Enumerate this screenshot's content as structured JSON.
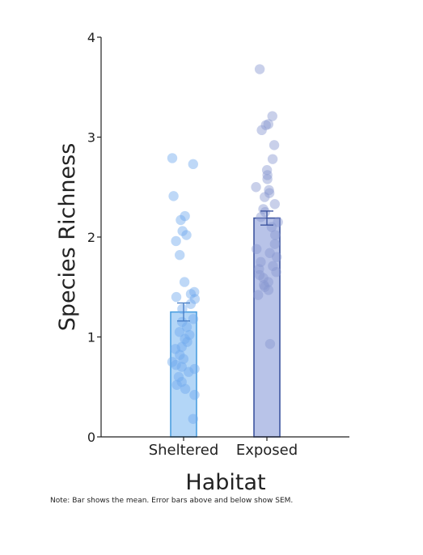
{
  "chart_data": {
    "type": "bar",
    "title": "",
    "xlabel": "Habitat",
    "ylabel": "Species Richness",
    "ylim": [
      0,
      4
    ],
    "yticks": [
      "0",
      "1",
      "2",
      "3",
      "4"
    ],
    "categories": [
      "Sheltered",
      "Exposed"
    ],
    "series": [
      {
        "values": [
          1.25,
          2.19
        ],
        "sem": [
          0.09,
          0.07
        ],
        "colors": {
          "bar_fill": "#b3d6f7",
          "bar_edge": "#4a9ee0",
          "point": "#6fa9ee",
          "error": "#4a80c8"
        }
      }
    ],
    "exposed_colors": {
      "bar_fill": "#b8c3e8",
      "bar_edge": "#3e55a0",
      "point": "#8797d0",
      "error": "#3e55a0"
    },
    "points": {
      "Sheltered": [
        2.79,
        2.73,
        2.41,
        2.21,
        2.17,
        2.06,
        2.02,
        1.96,
        1.82,
        1.55,
        1.45,
        1.43,
        1.4,
        1.38,
        1.33,
        1.28,
        1.18,
        1.15,
        1.1,
        1.05,
        1.02,
        0.98,
        0.95,
        0.9,
        0.88,
        0.82,
        0.78,
        0.75,
        0.72,
        0.7,
        0.68,
        0.65,
        0.6,
        0.55,
        0.52,
        0.48,
        0.42,
        0.18
      ],
      "Exposed": [
        3.68,
        3.21,
        3.13,
        3.12,
        3.07,
        2.92,
        2.78,
        2.67,
        2.62,
        2.58,
        2.5,
        2.47,
        2.44,
        2.4,
        2.33,
        2.28,
        2.25,
        2.2,
        2.15,
        2.1,
        2.02,
        1.93,
        1.88,
        1.84,
        1.8,
        1.75,
        1.71,
        1.68,
        1.65,
        1.62,
        1.59,
        1.55,
        1.52,
        1.5,
        1.47,
        1.42,
        0.93
      ]
    },
    "note": "Note: Bar shows the mean. Error bars above and below show SEM."
  }
}
